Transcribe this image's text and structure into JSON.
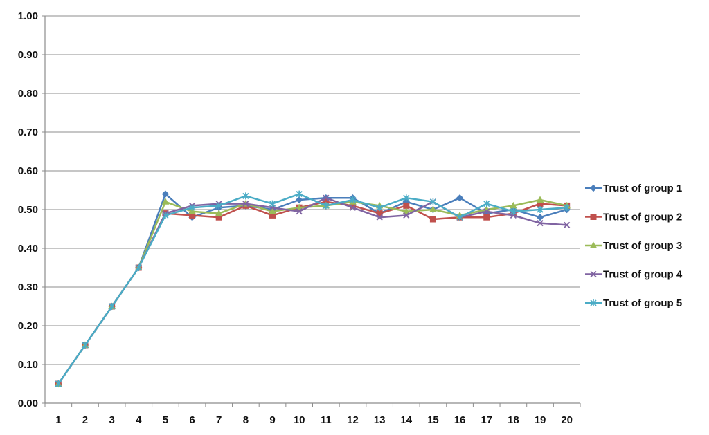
{
  "chart_data": {
    "type": "line",
    "title": "",
    "xlabel": "",
    "ylabel": "",
    "categories": [
      "1",
      "2",
      "3",
      "4",
      "5",
      "6",
      "7",
      "8",
      "9",
      "10",
      "11",
      "12",
      "13",
      "14",
      "15",
      "16",
      "17",
      "18",
      "19",
      "20"
    ],
    "ylim": [
      0,
      1
    ],
    "yticks": [
      "0.00",
      "0.10",
      "0.20",
      "0.30",
      "0.40",
      "0.50",
      "0.60",
      "0.70",
      "0.80",
      "0.90",
      "1.00"
    ],
    "grid": true,
    "legend_position": "right",
    "series": [
      {
        "name": "Trust of group 1",
        "color": "#4a7ebb",
        "marker": "diamond",
        "values": [
          0.05,
          0.15,
          0.25,
          0.35,
          0.54,
          0.48,
          0.505,
          0.51,
          0.5,
          0.525,
          0.53,
          0.53,
          0.49,
          0.52,
          0.5,
          0.53,
          0.49,
          0.5,
          0.48,
          0.5
        ]
      },
      {
        "name": "Trust of group 2",
        "color": "#c0504d",
        "marker": "square",
        "values": [
          0.05,
          0.15,
          0.25,
          0.35,
          0.49,
          0.485,
          0.48,
          0.51,
          0.485,
          0.505,
          0.52,
          0.51,
          0.49,
          0.51,
          0.475,
          0.48,
          0.48,
          0.49,
          0.515,
          0.51
        ]
      },
      {
        "name": "Trust of group 3",
        "color": "#9bbb59",
        "marker": "triangle",
        "values": [
          0.05,
          0.15,
          0.25,
          0.35,
          0.52,
          0.495,
          0.49,
          0.515,
          0.495,
          0.505,
          0.51,
          0.52,
          0.51,
          0.495,
          0.5,
          0.485,
          0.5,
          0.51,
          0.525,
          0.51
        ]
      },
      {
        "name": "Trust of group 4",
        "color": "#8064a2",
        "marker": "x",
        "values": [
          0.05,
          0.15,
          0.25,
          0.35,
          0.49,
          0.51,
          0.515,
          0.515,
          0.505,
          0.495,
          0.53,
          0.505,
          0.48,
          0.485,
          0.52,
          0.48,
          0.495,
          0.485,
          0.465,
          0.46
        ]
      },
      {
        "name": "Trust of group 5",
        "color": "#4bacc6",
        "marker": "star",
        "values": [
          0.05,
          0.15,
          0.25,
          0.35,
          0.485,
          0.505,
          0.51,
          0.535,
          0.515,
          0.54,
          0.51,
          0.525,
          0.505,
          0.53,
          0.52,
          0.48,
          0.515,
          0.495,
          0.5,
          0.505
        ]
      }
    ]
  }
}
